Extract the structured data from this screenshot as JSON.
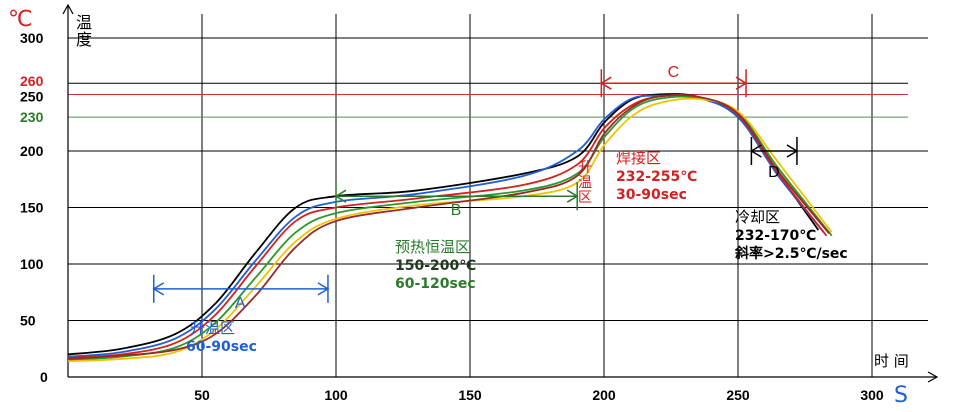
{
  "chart_data": {
    "type": "line",
    "title": "",
    "xlabel": "时 间",
    "xunit": "S",
    "ylabel_unit": "℃",
    "ylabel": "温度",
    "xlim": [
      0,
      315
    ],
    "ylim": [
      0,
      310
    ],
    "x_ticks": [
      "50",
      "100",
      "150",
      "200",
      "250",
      "300"
    ],
    "x_tick_values": [
      50,
      100,
      150,
      200,
      250,
      300
    ],
    "y_tick_values": [
      50,
      100,
      150,
      200,
      230,
      250,
      260,
      300
    ],
    "y_ticks": [
      {
        "value": 0,
        "label": "0"
      },
      {
        "value": 50,
        "label": "50"
      },
      {
        "value": 100,
        "label": "100"
      },
      {
        "value": 150,
        "label": "150"
      },
      {
        "value": 200,
        "label": "200"
      },
      {
        "value": 230,
        "label": "230"
      },
      {
        "value": 250,
        "label": "250"
      },
      {
        "value": 260,
        "label": "260"
      },
      {
        "value": 300,
        "label": "300"
      }
    ],
    "reference_lines": [
      {
        "value": 260,
        "color": "#000000"
      },
      {
        "value": 250,
        "color": "#cc3333"
      },
      {
        "value": 230,
        "color": "#5a8a5a"
      }
    ],
    "series": [
      {
        "name": "curve-black",
        "color": "#000000",
        "x": [
          0,
          20,
          40,
          55,
          70,
          85,
          100,
          130,
          170,
          190,
          200,
          210,
          220,
          235,
          250,
          265,
          280
        ],
        "y": [
          20,
          25,
          38,
          65,
          110,
          150,
          160,
          165,
          180,
          195,
          225,
          245,
          250,
          248,
          230,
          180,
          130
        ]
      },
      {
        "name": "curve-blue",
        "color": "#1f5fd6",
        "x": [
          0,
          20,
          40,
          55,
          70,
          85,
          100,
          130,
          170,
          190,
          200,
          210,
          220,
          235,
          250,
          265,
          282
        ],
        "y": [
          18,
          22,
          34,
          60,
          103,
          142,
          155,
          162,
          178,
          200,
          228,
          246,
          249,
          247,
          230,
          178,
          128
        ]
      },
      {
        "name": "curve-red",
        "color": "#d42020",
        "x": [
          0,
          20,
          40,
          55,
          70,
          85,
          100,
          130,
          170,
          190,
          200,
          210,
          220,
          235,
          250,
          265,
          283
        ],
        "y": [
          17,
          20,
          30,
          55,
          98,
          138,
          150,
          158,
          170,
          188,
          220,
          240,
          248,
          248,
          232,
          180,
          125
        ]
      },
      {
        "name": "curve-green",
        "color": "#2a9a2a",
        "x": [
          0,
          20,
          40,
          55,
          70,
          85,
          100,
          130,
          170,
          190,
          200,
          210,
          220,
          235,
          250,
          265,
          285
        ],
        "y": [
          15,
          18,
          26,
          48,
          88,
          128,
          145,
          155,
          165,
          180,
          212,
          236,
          246,
          247,
          234,
          185,
          125
        ]
      },
      {
        "name": "curve-yellow",
        "color": "#f2c200",
        "x": [
          0,
          20,
          40,
          55,
          70,
          85,
          100,
          130,
          170,
          190,
          200,
          210,
          220,
          235,
          250,
          265,
          285
        ],
        "y": [
          14,
          16,
          22,
          42,
          80,
          120,
          140,
          152,
          160,
          172,
          205,
          230,
          242,
          246,
          235,
          190,
          128
        ]
      },
      {
        "name": "curve-darkred",
        "color": "#9a2a2a",
        "x": [
          0,
          20,
          40,
          55,
          70,
          85,
          100,
          130,
          170,
          190,
          200,
          210,
          220,
          235,
          250,
          265,
          284
        ],
        "y": [
          16,
          19,
          24,
          38,
          72,
          115,
          138,
          150,
          163,
          178,
          215,
          238,
          248,
          248,
          233,
          182,
          127
        ]
      }
    ],
    "zones": [
      {
        "label": "A",
        "x_start": 32,
        "x_end": 97,
        "y": 78,
        "color": "#1f5fd6"
      },
      {
        "label": "B",
        "x_start": 100,
        "x_end": 190,
        "y": 160,
        "color": "#2a7a2a"
      },
      {
        "label": "C",
        "x_start": 199,
        "x_end": 253,
        "y": 260,
        "color": "#d42020"
      },
      {
        "label": "D",
        "x_start": 255,
        "x_end": 272,
        "y": 200,
        "color": "#000000"
      }
    ],
    "annotations": {
      "ramp_up": {
        "title": "升温区",
        "range": "60-90sec",
        "color": "#1f5fd6"
      },
      "preheat": {
        "title": "预热恒温区",
        "temp": "150-200℃",
        "time": "60-120sec",
        "color": "#2a7a2a"
      },
      "reflow_up": {
        "title": "升温区",
        "color": "#d42020"
      },
      "reflow": {
        "title": "焊接区",
        "temp": "232-255℃",
        "time": "30-90sec",
        "color": "#d42020"
      },
      "cooling": {
        "title": "冷却区",
        "temp": "232-170℃",
        "slope": "斜率>2.5℃/sec",
        "color": "#000000"
      }
    }
  }
}
